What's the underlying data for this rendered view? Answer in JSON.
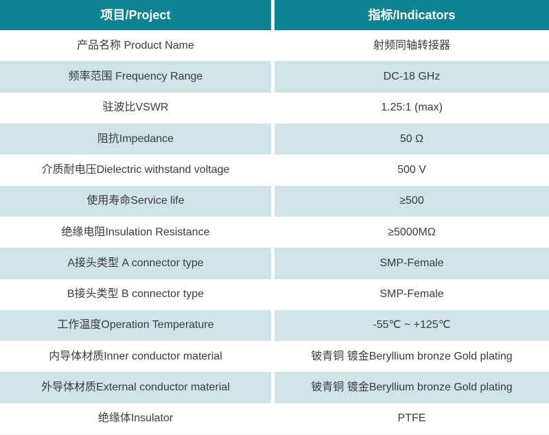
{
  "colors": {
    "header_bg": "#0e8391",
    "alt_row_bg": "#cee4e9",
    "header_text": "#ffffff",
    "body_text": "#3b3b3b"
  },
  "table": {
    "header": {
      "project": "项目/Project",
      "indicators": "指标/Indicators"
    },
    "rows": [
      {
        "project": "产品名称 Product Name",
        "indicator": "射频同轴转接器"
      },
      {
        "project": "频率范围 Frequency Range",
        "indicator": "DC-18 GHz"
      },
      {
        "project": "驻波比VSWR",
        "indicator": "1.25:1 (max)"
      },
      {
        "project": "阻抗Impedance",
        "indicator": "50 Ω"
      },
      {
        "project": "介质耐电压Dielectric withstand voltage",
        "indicator": "500 V"
      },
      {
        "project": "使用寿命Service life",
        "indicator": "≥500"
      },
      {
        "project": "绝缘电阻Insulation Resistance",
        "indicator": "≥5000MΩ"
      },
      {
        "project": "A接头类型 A connector type",
        "indicator": "SMP-Female"
      },
      {
        "project": "B接头类型 B connector type",
        "indicator": "SMP-Female"
      },
      {
        "project": "工作温度Operation Temperature",
        "indicator": "-55℃ ~ +125℃"
      },
      {
        "project": "内导体材质Inner conductor material",
        "indicator": "铍青铜 镀金Beryllium bronze Gold plating"
      },
      {
        "project": "外导体材质External conductor material",
        "indicator": "铍青铜 镀金Beryllium bronze Gold plating"
      },
      {
        "project": "绝缘体Insulator",
        "indicator": "PTFE"
      }
    ]
  }
}
